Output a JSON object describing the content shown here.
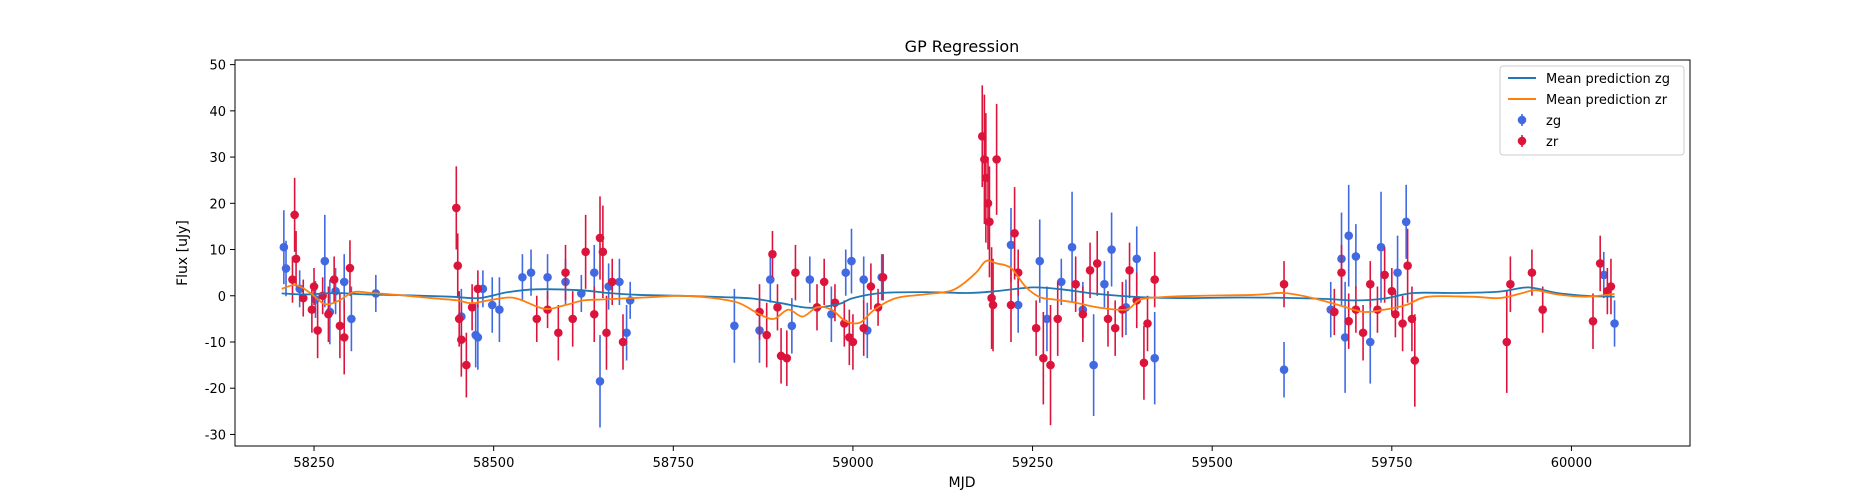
{
  "chart_data": {
    "type": "scatter",
    "title": "GP Regression",
    "xlabel": "MJD",
    "ylabel": "Flux [uJy]",
    "xlim": [
      58140,
      60165
    ],
    "ylim": [
      -32.5,
      51
    ],
    "xticks": [
      58250,
      58500,
      58750,
      59000,
      59250,
      59500,
      59750,
      60000
    ],
    "yticks": [
      -30,
      -20,
      -10,
      0,
      10,
      20,
      30,
      40,
      50
    ],
    "grid": false,
    "legend_position": "top-right",
    "legend": [
      {
        "label": "Mean prediction zg",
        "kind": "line",
        "color": "#1f77b4"
      },
      {
        "label": "Mean prediction zr",
        "kind": "line",
        "color": "#ff7f0e"
      },
      {
        "label": "zg",
        "kind": "errorbar",
        "color": "#4169e1"
      },
      {
        "label": "zr",
        "kind": "errorbar",
        "color": "#dc143c"
      }
    ],
    "lines": [
      {
        "name": "Mean prediction zg",
        "color": "#1f77b4",
        "points": [
          [
            58205,
            0.5
          ],
          [
            58240,
            0.3
          ],
          [
            58280,
            0.6
          ],
          [
            58320,
            0.3
          ],
          [
            58380,
            0.1
          ],
          [
            58440,
            -0.2
          ],
          [
            58480,
            -0.5
          ],
          [
            58520,
            0.8
          ],
          [
            58560,
            1.4
          ],
          [
            58620,
            1.2
          ],
          [
            58660,
            0.6
          ],
          [
            58700,
            0.2
          ],
          [
            58760,
            0.0
          ],
          [
            58820,
            -0.3
          ],
          [
            58860,
            -0.6
          ],
          [
            58900,
            -1.6
          ],
          [
            58940,
            -2.6
          ],
          [
            58980,
            -1.8
          ],
          [
            59000,
            -0.5
          ],
          [
            59040,
            0.6
          ],
          [
            59100,
            0.8
          ],
          [
            59160,
            0.6
          ],
          [
            59200,
            1.0
          ],
          [
            59250,
            1.8
          ],
          [
            59290,
            1.4
          ],
          [
            59340,
            0.4
          ],
          [
            59400,
            -0.3
          ],
          [
            59460,
            -0.5
          ],
          [
            59520,
            -0.4
          ],
          [
            59580,
            -0.4
          ],
          [
            59620,
            -0.5
          ],
          [
            59660,
            -0.7
          ],
          [
            59700,
            -1.0
          ],
          [
            59740,
            -0.6
          ],
          [
            59780,
            0.6
          ],
          [
            59840,
            0.6
          ],
          [
            59900,
            0.9
          ],
          [
            59940,
            1.8
          ],
          [
            59980,
            0.6
          ],
          [
            60020,
            0.0
          ],
          [
            60060,
            -0.2
          ]
        ]
      },
      {
        "name": "Mean prediction zr",
        "color": "#ff7f0e",
        "points": [
          [
            58205,
            1.5
          ],
          [
            58225,
            2.3
          ],
          [
            58245,
            0.6
          ],
          [
            58265,
            -1.8
          ],
          [
            58285,
            -1.0
          ],
          [
            58305,
            0.8
          ],
          [
            58330,
            0.6
          ],
          [
            58380,
            0.0
          ],
          [
            58420,
            -0.6
          ],
          [
            58450,
            -1.0
          ],
          [
            58470,
            -1.6
          ],
          [
            58500,
            -0.8
          ],
          [
            58530,
            -0.5
          ],
          [
            58570,
            -2.8
          ],
          [
            58600,
            -2.0
          ],
          [
            58625,
            -1.0
          ],
          [
            58650,
            -0.8
          ],
          [
            58680,
            -0.6
          ],
          [
            58720,
            -0.3
          ],
          [
            58760,
            0.0
          ],
          [
            58800,
            -0.4
          ],
          [
            58840,
            -1.5
          ],
          [
            58870,
            -4.0
          ],
          [
            58890,
            -5.0
          ],
          [
            58910,
            -3.0
          ],
          [
            58930,
            -4.5
          ],
          [
            58950,
            -2.5
          ],
          [
            58970,
            -3.0
          ],
          [
            58990,
            -5.5
          ],
          [
            59010,
            -5.8
          ],
          [
            59030,
            -3.0
          ],
          [
            59060,
            -0.5
          ],
          [
            59100,
            0.3
          ],
          [
            59140,
            1.3
          ],
          [
            59170,
            4.8
          ],
          [
            59185,
            7.5
          ],
          [
            59200,
            7.0
          ],
          [
            59220,
            6.0
          ],
          [
            59240,
            2.0
          ],
          [
            59260,
            -0.3
          ],
          [
            59280,
            -0.8
          ],
          [
            59310,
            -1.5
          ],
          [
            59340,
            -2.5
          ],
          [
            59380,
            -3.0
          ],
          [
            59400,
            -0.8
          ],
          [
            59430,
            -0.3
          ],
          [
            59480,
            0.0
          ],
          [
            59560,
            0.2
          ],
          [
            59600,
            0.6
          ],
          [
            59640,
            -0.5
          ],
          [
            59680,
            -2.2
          ],
          [
            59710,
            -3.5
          ],
          [
            59740,
            -3.0
          ],
          [
            59770,
            -2.0
          ],
          [
            59800,
            -0.2
          ],
          [
            59860,
            -0.2
          ],
          [
            59900,
            -0.5
          ],
          [
            59930,
            0.5
          ],
          [
            59950,
            1.2
          ],
          [
            59980,
            0.3
          ],
          [
            60020,
            -0.2
          ],
          [
            60060,
            0.4
          ]
        ]
      }
    ],
    "series": [
      {
        "name": "zg",
        "color": "#4169e1",
        "points": [
          [
            58208,
            10.5,
            8
          ],
          [
            58211,
            5.9,
            6
          ],
          [
            58230,
            1.5,
            4
          ],
          [
            58252,
            -0.8,
            4
          ],
          [
            58265,
            7.5,
            10
          ],
          [
            58272,
            -3.5,
            7
          ],
          [
            58280,
            1.0,
            5
          ],
          [
            58292,
            3.0,
            6
          ],
          [
            58302,
            -5.0,
            7
          ],
          [
            58336,
            0.5,
            4
          ],
          [
            58455,
            -4.5,
            6
          ],
          [
            58475,
            -8.5,
            7
          ],
          [
            58478,
            -9.0,
            7
          ],
          [
            58485,
            1.5,
            4
          ],
          [
            58498,
            -2.0,
            6
          ],
          [
            58508,
            -3.0,
            7
          ],
          [
            58540,
            4.0,
            5
          ],
          [
            58552,
            5.0,
            5
          ],
          [
            58575,
            4.0,
            5
          ],
          [
            58600,
            3.0,
            5
          ],
          [
            58622,
            0.5,
            4
          ],
          [
            58640,
            5.0,
            6
          ],
          [
            58648,
            -18.5,
            10
          ],
          [
            58660,
            2.0,
            5
          ],
          [
            58675,
            3.0,
            5
          ],
          [
            58685,
            -8.0,
            6
          ],
          [
            58690,
            -1.0,
            4
          ],
          [
            58835,
            -6.5,
            8
          ],
          [
            58870,
            -7.5,
            7
          ],
          [
            58885,
            3.5,
            5
          ],
          [
            58915,
            -6.5,
            6
          ],
          [
            58940,
            3.5,
            5
          ],
          [
            58970,
            -4.0,
            6
          ],
          [
            58990,
            5.0,
            5
          ],
          [
            58998,
            7.5,
            7
          ],
          [
            59015,
            3.5,
            5
          ],
          [
            59020,
            -7.5,
            6
          ],
          [
            59040,
            4.0,
            5
          ],
          [
            59220,
            11.0,
            8
          ],
          [
            59230,
            -2.0,
            6
          ],
          [
            59260,
            7.5,
            9
          ],
          [
            59270,
            -5.0,
            7
          ],
          [
            59290,
            3.0,
            5
          ],
          [
            59305,
            10.5,
            12
          ],
          [
            59320,
            -3.0,
            6
          ],
          [
            59335,
            -15.0,
            11
          ],
          [
            59350,
            2.5,
            5
          ],
          [
            59360,
            10.0,
            8
          ],
          [
            59380,
            -2.5,
            6
          ],
          [
            59395,
            8.0,
            7
          ],
          [
            59420,
            -13.5,
            10
          ],
          [
            59600,
            -16.0,
            6
          ],
          [
            59665,
            -3.0,
            6
          ],
          [
            59680,
            8.0,
            10
          ],
          [
            59685,
            -9.0,
            12
          ],
          [
            59690,
            13.0,
            11
          ],
          [
            59700,
            8.5,
            7
          ],
          [
            59720,
            -10.0,
            9
          ],
          [
            59735,
            10.5,
            12
          ],
          [
            59758,
            5.0,
            8
          ],
          [
            59770,
            16.0,
            8
          ],
          [
            60045,
            4.5,
            5
          ],
          [
            60060,
            -6.0,
            5
          ]
        ]
      },
      {
        "name": "zr",
        "color": "#dc143c",
        "points": [
          [
            58220,
            3.5,
            5
          ],
          [
            58223,
            17.5,
            8
          ],
          [
            58225,
            8.0,
            6
          ],
          [
            58235,
            -0.5,
            4
          ],
          [
            58247,
            -3.0,
            5
          ],
          [
            58250,
            2.0,
            4
          ],
          [
            58255,
            -7.5,
            6
          ],
          [
            58262,
            0.0,
            4
          ],
          [
            58270,
            -4.0,
            6
          ],
          [
            58278,
            3.5,
            5
          ],
          [
            58286,
            -6.5,
            7
          ],
          [
            58292,
            -9.0,
            8
          ],
          [
            58300,
            6.0,
            6
          ],
          [
            58448,
            19.0,
            9
          ],
          [
            58450,
            6.5,
            7
          ],
          [
            58452,
            -5.0,
            6
          ],
          [
            58455,
            -9.5,
            8
          ],
          [
            58462,
            -15.0,
            7
          ],
          [
            58470,
            -2.5,
            5
          ],
          [
            58478,
            1.5,
            4
          ],
          [
            58560,
            -5.0,
            5
          ],
          [
            58575,
            -3.0,
            4
          ],
          [
            58590,
            -8.0,
            6
          ],
          [
            58600,
            5.0,
            6
          ],
          [
            58610,
            -5.0,
            6
          ],
          [
            58628,
            9.5,
            8
          ],
          [
            58640,
            -4.0,
            6
          ],
          [
            58648,
            12.5,
            9
          ],
          [
            58652,
            9.5,
            10
          ],
          [
            58657,
            -8.0,
            8
          ],
          [
            58665,
            3.0,
            5
          ],
          [
            58680,
            -10.0,
            6
          ],
          [
            58870,
            -3.5,
            6
          ],
          [
            58880,
            -8.5,
            7
          ],
          [
            58888,
            9.0,
            5
          ],
          [
            58895,
            -2.5,
            5
          ],
          [
            58900,
            -13.0,
            6
          ],
          [
            58908,
            -13.5,
            6
          ],
          [
            58920,
            5.0,
            6
          ],
          [
            58950,
            -2.5,
            5
          ],
          [
            58960,
            3.0,
            5
          ],
          [
            58975,
            -1.5,
            4
          ],
          [
            58988,
            -6.0,
            5
          ],
          [
            58995,
            -9.0,
            6
          ],
          [
            59000,
            -10.0,
            6
          ],
          [
            59015,
            -7.0,
            6
          ],
          [
            59025,
            2.0,
            5
          ],
          [
            59035,
            -2.5,
            4
          ],
          [
            59042,
            4.0,
            5
          ],
          [
            59180,
            34.5,
            11
          ],
          [
            59183,
            29.5,
            14
          ],
          [
            59185,
            25.5,
            14
          ],
          [
            59188,
            20.0,
            10
          ],
          [
            59190,
            16.0,
            12
          ],
          [
            59193,
            -0.5,
            11
          ],
          [
            59195,
            -2.0,
            10
          ],
          [
            59200,
            29.5,
            12
          ],
          [
            59220,
            -2.0,
            8
          ],
          [
            59225,
            13.5,
            10
          ],
          [
            59230,
            5.0,
            5
          ],
          [
            59255,
            -7.0,
            6
          ],
          [
            59265,
            -13.5,
            10
          ],
          [
            59275,
            -15.0,
            13
          ],
          [
            59285,
            -5.0,
            8
          ],
          [
            59310,
            2.5,
            6
          ],
          [
            59320,
            -4.0,
            6
          ],
          [
            59330,
            5.5,
            6
          ],
          [
            59340,
            7.0,
            7
          ],
          [
            59355,
            -5.0,
            6
          ],
          [
            59365,
            -7.0,
            6
          ],
          [
            59375,
            -3.0,
            6
          ],
          [
            59385,
            5.5,
            6
          ],
          [
            59395,
            -1.0,
            6
          ],
          [
            59405,
            -14.5,
            8
          ],
          [
            59410,
            -6.0,
            6
          ],
          [
            59420,
            3.5,
            6
          ],
          [
            59600,
            2.5,
            5
          ],
          [
            59670,
            -3.5,
            5
          ],
          [
            59680,
            5.0,
            6
          ],
          [
            59690,
            -5.5,
            6
          ],
          [
            59700,
            -3.0,
            5
          ],
          [
            59710,
            -8.0,
            6
          ],
          [
            59720,
            2.5,
            5
          ],
          [
            59730,
            -3.0,
            5
          ],
          [
            59740,
            4.5,
            6
          ],
          [
            59750,
            1.0,
            5
          ],
          [
            59755,
            -4.0,
            5
          ],
          [
            59765,
            -6.0,
            6
          ],
          [
            59772,
            6.5,
            8
          ],
          [
            59778,
            -5.0,
            7
          ],
          [
            59782,
            -14.0,
            10
          ],
          [
            59910,
            -10.0,
            11
          ],
          [
            59915,
            2.5,
            6
          ],
          [
            59945,
            5.0,
            5
          ],
          [
            59960,
            -3.0,
            5
          ],
          [
            60030,
            -5.5,
            6
          ],
          [
            60040,
            7.0,
            6
          ],
          [
            60050,
            1.0,
            5
          ],
          [
            60055,
            2.0,
            6
          ]
        ]
      }
    ]
  }
}
